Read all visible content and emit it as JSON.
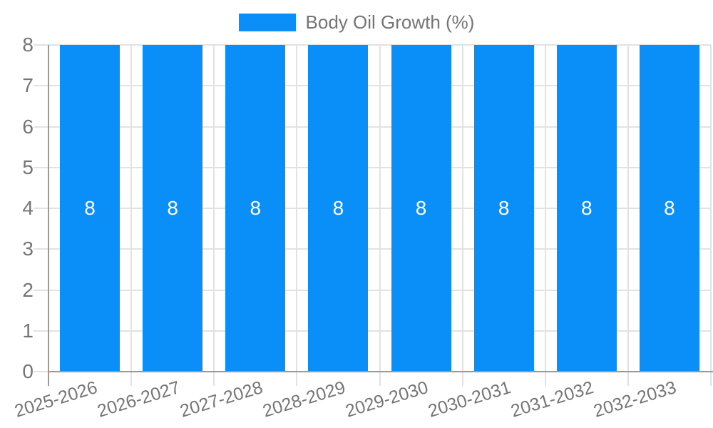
{
  "legend": {
    "label": "Body Oil Growth (%)",
    "position": "top"
  },
  "colors": {
    "bar": "#0A8FF9",
    "grid": "#E2E2E2",
    "axis": "#9A9A9A",
    "text": "#757575",
    "data_label": "#FFFFFF",
    "background": "#FFFFFF"
  },
  "chart_data": {
    "type": "bar",
    "title": "",
    "categories": [
      "2025-2026",
      "2026-2027",
      "2027-2028",
      "2028-2029",
      "2029-2030",
      "2030-2031",
      "2031-2032",
      "2032-2033"
    ],
    "series": [
      {
        "name": "Body Oil Growth (%)",
        "color": "#0A8FF9",
        "values": [
          8,
          8,
          8,
          8,
          8,
          8,
          8,
          8
        ]
      }
    ],
    "data_labels": [
      "8",
      "8",
      "8",
      "8",
      "8",
      "8",
      "8",
      "8"
    ],
    "xlabel": "",
    "ylabel": "",
    "ylim": [
      0,
      8
    ],
    "yticks": [
      0,
      1,
      2,
      3,
      4,
      5,
      6,
      7,
      8
    ],
    "grid": true,
    "legend_position": "top"
  }
}
